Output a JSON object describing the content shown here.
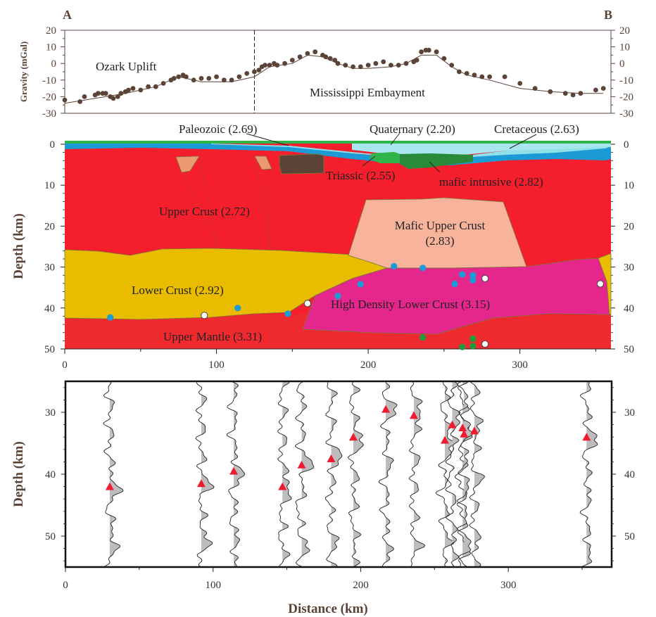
{
  "endpoints": {
    "left": "A",
    "right": "B"
  },
  "colors": {
    "upper_crust": "#f41e2c",
    "upper_mantle": "#ee2a2e",
    "lower_crust": "#e9bc00",
    "mafic_upper_crust": "#f7b39c",
    "high_density_lower_crust": "#e5268c",
    "paleozoic": "#1b9ad6",
    "quaternary": "#90e0ea",
    "cretaceous": "#a9e6ef",
    "triassic": "#2fb54a",
    "mafic_intrusive": "#2a8a3c",
    "brown_block": "#5b4337",
    "salmon_block": "#ec9a72",
    "station_blue": "#1a9cd6",
    "station_green": "#1f9b3e",
    "triangle": "#ee1c2e",
    "trace_fill": "#bdbdbd",
    "dot_brown": "#5b4337",
    "text_brown": "#5b4337"
  },
  "chart_data": [
    {
      "type": "scatter",
      "ylabel": "Gravity (mGal)",
      "ylim": [
        -30,
        20
      ],
      "yticks": [
        "20",
        "10",
        "0",
        "-10",
        "-20",
        "-30"
      ],
      "xlim": [
        0,
        360
      ],
      "annotations": {
        "region_west": "Ozark Uplift",
        "region_east": "Mississippi Embayment",
        "boundary_x": 125
      },
      "observed": {
        "x": [
          0,
          10,
          13,
          20,
          22,
          25,
          27,
          30,
          32,
          35,
          37,
          40,
          42,
          45,
          50,
          55,
          60,
          65,
          70,
          72,
          75,
          78,
          80,
          85,
          90,
          95,
          100,
          105,
          110,
          115,
          120,
          125,
          128,
          130,
          132,
          135,
          138,
          140,
          145,
          150,
          155,
          160,
          165,
          170,
          172,
          175,
          178,
          180,
          185,
          190,
          195,
          200,
          205,
          210,
          215,
          220,
          225,
          230,
          232,
          235,
          238,
          240,
          245,
          250,
          255,
          260,
          265,
          270,
          275,
          280,
          290,
          300,
          310,
          320,
          330,
          335,
          340,
          350,
          355
        ],
        "y": [
          -22,
          -23,
          -20,
          -19,
          -18,
          -18,
          -18,
          -20,
          -21,
          -20,
          -18,
          -17,
          -16,
          -15,
          -16,
          -14,
          -14,
          -12,
          -10,
          -9,
          -8,
          -7,
          -8,
          -10,
          -9,
          -9,
          -8,
          -10,
          -10,
          -8,
          -6,
          -5,
          -4,
          -2,
          -1,
          -1,
          0,
          -1,
          0,
          2,
          4,
          6,
          7,
          5,
          4,
          3,
          2,
          0,
          -1,
          -2,
          -2,
          -1,
          0,
          1,
          -1,
          -1,
          0,
          1,
          2,
          7,
          8,
          8,
          7,
          3,
          -1,
          -5,
          -6,
          -7,
          -8,
          -8,
          -8,
          -12,
          -15,
          -17,
          -18,
          -19,
          -18,
          -16,
          -15
        ]
      },
      "calculated": {
        "x": [
          0,
          20,
          40,
          60,
          75,
          90,
          110,
          125,
          135,
          150,
          160,
          170,
          180,
          190,
          200,
          215,
          225,
          235,
          245,
          255,
          265,
          280,
          300,
          320,
          340,
          355
        ],
        "y": [
          -24,
          -21,
          -18,
          -14,
          -8,
          -11,
          -11,
          -8,
          -2,
          0,
          5,
          4,
          0,
          -3,
          -3,
          -2,
          0,
          5,
          5,
          -2,
          -7,
          -10,
          -15,
          -17,
          -18,
          -18
        ]
      }
    },
    {
      "type": "area",
      "ylabel": "Depth (km)",
      "xlim": [
        0,
        360
      ],
      "ylim": [
        0,
        50
      ],
      "xticks": [
        "0",
        "100",
        "200",
        "300"
      ],
      "yticks": [
        "0",
        "10",
        "20",
        "30",
        "40",
        "50"
      ],
      "layers": [
        {
          "name": "Paleozoic (2.69)"
        },
        {
          "name": "Quaternary (2.20)"
        },
        {
          "name": "Cretaceous (2.63)"
        },
        {
          "name": "Triassic (2.55)"
        },
        {
          "name": "mafic intrusive (2.82)"
        },
        {
          "name": "Upper Crust (2.72)"
        },
        {
          "name": "Mafic Upper Crust",
          "density": "(2.83)"
        },
        {
          "name": "Lower Crust (2.92)"
        },
        {
          "name": "High Density Lower Crust (3.15)"
        },
        {
          "name": "Upper Mantle (3.31)"
        }
      ],
      "moho_stations": [
        {
          "x": 30,
          "y": 42.3,
          "color": "blue"
        },
        {
          "x": 92,
          "y": 41.8,
          "color": "white"
        },
        {
          "x": 114,
          "y": 40,
          "color": "blue"
        },
        {
          "x": 147,
          "y": 41.4,
          "color": "blue"
        },
        {
          "x": 160,
          "y": 38.9,
          "color": "white"
        },
        {
          "x": 180,
          "y": 37.1,
          "color": "blue"
        },
        {
          "x": 195,
          "y": 34.2,
          "color": "blue"
        },
        {
          "x": 217,
          "y": 29.8,
          "color": "blue"
        },
        {
          "x": 236,
          "y": 30.2,
          "color": "blue"
        },
        {
          "x": 257,
          "y": 34.1,
          "color": "blue"
        },
        {
          "x": 262,
          "y": 31.8,
          "color": "blue"
        },
        {
          "x": 269,
          "y": 32,
          "color": "blue"
        },
        {
          "x": 269,
          "y": 33.2,
          "color": "blue"
        },
        {
          "x": 277,
          "y": 32.8,
          "color": "white"
        },
        {
          "x": 353,
          "y": 34.1,
          "color": "white"
        },
        {
          "x": 236,
          "y": 47.2,
          "color": "green"
        },
        {
          "x": 262,
          "y": 49.5,
          "color": "green"
        },
        {
          "x": 269,
          "y": 47.5,
          "color": "green"
        },
        {
          "x": 269,
          "y": 49.3,
          "color": "green"
        },
        {
          "x": 277,
          "y": 48.8,
          "color": "white"
        }
      ]
    },
    {
      "type": "line",
      "xlabel": "Distance (km)",
      "ylabel": "Depth (km)",
      "xlim": [
        0,
        370
      ],
      "ylim": [
        25,
        55
      ],
      "xticks": [
        "0",
        "100",
        "200",
        "300"
      ],
      "yticks": [
        "30",
        "40",
        "50"
      ],
      "traces": [
        {
          "x": 30,
          "peak": 42,
          "amp": 12
        },
        {
          "x": 92,
          "peak": 41.5,
          "amp": 10
        },
        {
          "x": 114,
          "peak": 39.5,
          "amp": 11
        },
        {
          "x": 147,
          "peak": 42,
          "amp": 12
        },
        {
          "x": 160,
          "peak": 38.5,
          "amp": 12
        },
        {
          "x": 180,
          "peak": 37.5,
          "amp": 12
        },
        {
          "x": 195,
          "peak": 34,
          "amp": 13
        },
        {
          "x": 217,
          "peak": 29.5,
          "amp": 11
        },
        {
          "x": 236,
          "peak": 30.5,
          "amp": 12
        },
        {
          "x": 257,
          "peak": 34.5,
          "amp": 12
        },
        {
          "x": 262,
          "peak": 32,
          "amp": 9
        },
        {
          "x": 269,
          "peak": 32.5,
          "amp": 9
        },
        {
          "x": 270,
          "peak": 33.5,
          "amp": 7
        },
        {
          "x": 277,
          "peak": 33,
          "amp": 8
        },
        {
          "x": 353,
          "peak": 34,
          "amp": 12
        }
      ]
    }
  ]
}
